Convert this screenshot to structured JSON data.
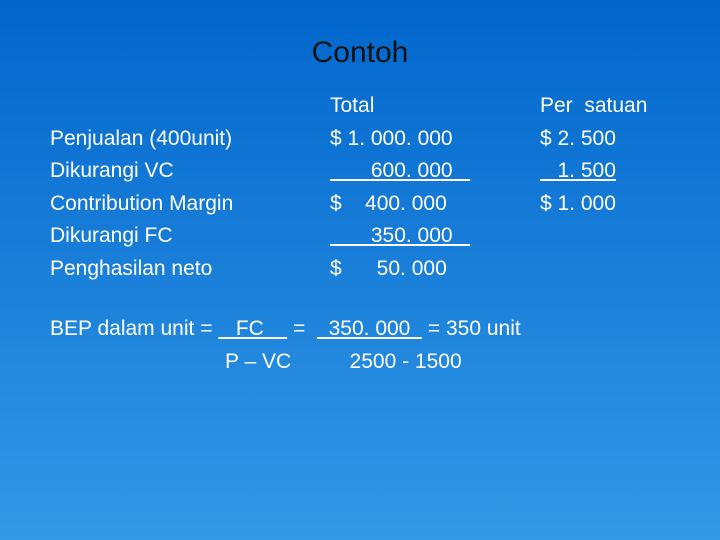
{
  "title": "Contoh",
  "header": {
    "label": "",
    "total": "Total",
    "per": "Per  satuan"
  },
  "rows": [
    {
      "label": "Penjualan (400unit)",
      "total": "$ 1. 000. 000",
      "per": "$ 2. 500",
      "totalUnderline": false,
      "perUnderline": false
    },
    {
      "label": "Dikurangi VC",
      "total": "       600. 000   ",
      "per": "   1. 500",
      "totalUnderline": true,
      "perUnderline": true
    },
    {
      "label": "Contribution Margin",
      "total": "$    400. 000",
      "per": "$ 1. 000",
      "totalUnderline": false,
      "perUnderline": false
    },
    {
      "label": "Dikurangi FC",
      "total": "       350. 000   ",
      "per": "",
      "totalUnderline": true,
      "perUnderline": false
    },
    {
      "label": "Penghasilan neto",
      "total": "$      50. 000",
      "per": "",
      "totalUnderline": false,
      "perUnderline": false
    }
  ],
  "bep": {
    "line1_pre": "BEP dalam unit = ",
    "line1_fc": "   FC    ",
    "line1_mid": " =  ",
    "line1_num": "  350. 000  ",
    "line1_post": " = 350 unit",
    "line2": "                              P – VC          2500 - 1500"
  },
  "style": {
    "title_color": "#111111",
    "text_color": "#ffffff",
    "bg_top": "#0066cc",
    "bg_bottom": "#3399e6",
    "title_fontsize": 30,
    "body_fontsize": 21
  }
}
